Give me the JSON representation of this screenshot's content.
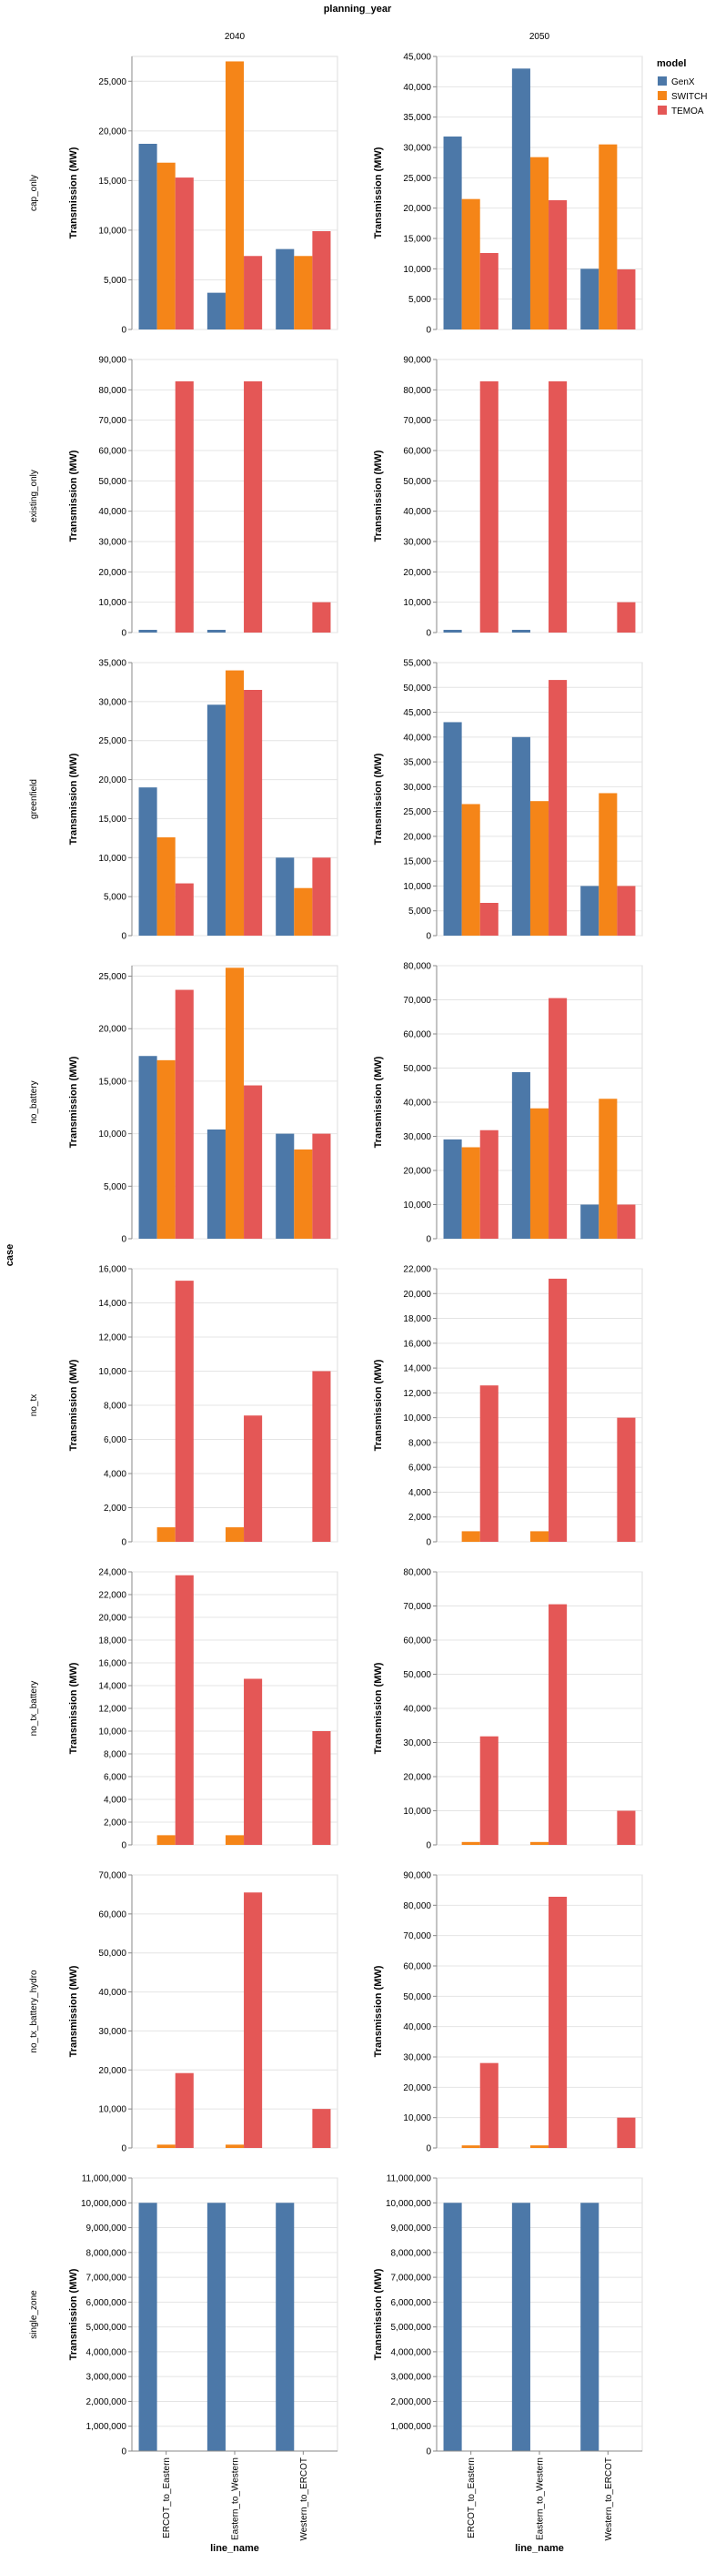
{
  "facet_column_title": "planning_year",
  "facet_row_title": "case",
  "x_title": "line_name",
  "y_title": "Transmission (MW)",
  "legend": {
    "title": "model",
    "items": [
      {
        "name": "GenX",
        "color": "#4c78a8"
      },
      {
        "name": "SWITCH",
        "color": "#f58518"
      },
      {
        "name": "TEMOA",
        "color": "#e45756"
      }
    ]
  },
  "chart_data": {
    "type": "bar",
    "columns": [
      "2040",
      "2050"
    ],
    "categories": [
      "ERCOT_to_Eastern",
      "Eastern_to_Western",
      "Western_to_ERCOT"
    ],
    "series_names": [
      "GenX",
      "SWITCH",
      "TEMOA"
    ],
    "series_colors": [
      "#4c78a8",
      "#f58518",
      "#e45756"
    ],
    "rows": [
      {
        "case": "cap_only",
        "panels": [
          {
            "year": "2040",
            "ymax": 27500,
            "tick_step": 5000,
            "values": [
              [
                18700,
                16800,
                15300
              ],
              [
                3700,
                27000,
                7400
              ],
              [
                8100,
                7400,
                9900
              ]
            ]
          },
          {
            "year": "2050",
            "ymax": 45000,
            "tick_step": 5000,
            "values": [
              [
                31800,
                21500,
                12600
              ],
              [
                43000,
                28400,
                21300
              ],
              [
                10000,
                30500,
                9900
              ]
            ]
          }
        ]
      },
      {
        "case": "existing_only",
        "panels": [
          {
            "year": "2040",
            "ymax": 90000,
            "tick_step": 10000,
            "values": [
              [
                900,
                0,
                82800
              ],
              [
                900,
                0,
                82800
              ],
              [
                0,
                0,
                10000
              ]
            ]
          },
          {
            "year": "2050",
            "ymax": 90000,
            "tick_step": 10000,
            "values": [
              [
                900,
                0,
                82800
              ],
              [
                900,
                0,
                82800
              ],
              [
                0,
                0,
                10000
              ]
            ]
          }
        ]
      },
      {
        "case": "greenfield",
        "panels": [
          {
            "year": "2040",
            "ymax": 35000,
            "tick_step": 5000,
            "values": [
              [
                19000,
                12600,
                6700
              ],
              [
                29600,
                34000,
                31500
              ],
              [
                10000,
                6100,
                10000
              ]
            ]
          },
          {
            "year": "2050",
            "ymax": 55000,
            "tick_step": 5000,
            "values": [
              [
                43000,
                26500,
                6600
              ],
              [
                40000,
                27100,
                51500
              ],
              [
                10000,
                28700,
                10000
              ]
            ]
          }
        ]
      },
      {
        "case": "no_battery",
        "panels": [
          {
            "year": "2040",
            "ymax": 26000,
            "tick_step": 5000,
            "values": [
              [
                17400,
                17000,
                23700
              ],
              [
                10400,
                25800,
                14600
              ],
              [
                10000,
                8500,
                10000
              ]
            ]
          },
          {
            "year": "2050",
            "ymax": 80000,
            "tick_step": 10000,
            "values": [
              [
                29100,
                26800,
                31800
              ],
              [
                48800,
                38200,
                70500
              ],
              [
                10000,
                41000,
                10000
              ]
            ]
          }
        ]
      },
      {
        "case": "no_tx",
        "panels": [
          {
            "year": "2040",
            "ymax": 16000,
            "tick_step": 2000,
            "values": [
              [
                0,
                850,
                15300
              ],
              [
                0,
                850,
                7400
              ],
              [
                0,
                0,
                10000
              ]
            ]
          },
          {
            "year": "2050",
            "ymax": 22000,
            "tick_step": 2000,
            "values": [
              [
                0,
                850,
                12600
              ],
              [
                0,
                850,
                21200
              ],
              [
                0,
                0,
                10000
              ]
            ]
          }
        ]
      },
      {
        "case": "no_tx_battery",
        "panels": [
          {
            "year": "2040",
            "ymax": 24000,
            "tick_step": 2000,
            "values": [
              [
                0,
                850,
                23700
              ],
              [
                0,
                850,
                14600
              ],
              [
                0,
                0,
                10000
              ]
            ]
          },
          {
            "year": "2050",
            "ymax": 80000,
            "tick_step": 10000,
            "values": [
              [
                0,
                850,
                31800
              ],
              [
                0,
                850,
                70500
              ],
              [
                0,
                0,
                10000
              ]
            ]
          }
        ]
      },
      {
        "case": "no_tx_battery_hydro",
        "panels": [
          {
            "year": "2040",
            "ymax": 70000,
            "tick_step": 10000,
            "values": [
              [
                0,
                850,
                19200
              ],
              [
                0,
                850,
                65500
              ],
              [
                0,
                0,
                10000
              ]
            ]
          },
          {
            "year": "2050",
            "ymax": 90000,
            "tick_step": 10000,
            "values": [
              [
                0,
                850,
                28000
              ],
              [
                0,
                850,
                82800
              ],
              [
                0,
                0,
                10000
              ]
            ]
          }
        ]
      },
      {
        "case": "single_zone",
        "panels": [
          {
            "year": "2040",
            "ymax": 11000000,
            "tick_step": 1000000,
            "values": [
              [
                10000000,
                0,
                0
              ],
              [
                10000000,
                0,
                0
              ],
              [
                10000000,
                0,
                0
              ]
            ]
          },
          {
            "year": "2050",
            "ymax": 11000000,
            "tick_step": 1000000,
            "values": [
              [
                10000000,
                0,
                0
              ],
              [
                10000000,
                0,
                0
              ],
              [
                10000000,
                0,
                0
              ]
            ]
          }
        ]
      }
    ]
  }
}
